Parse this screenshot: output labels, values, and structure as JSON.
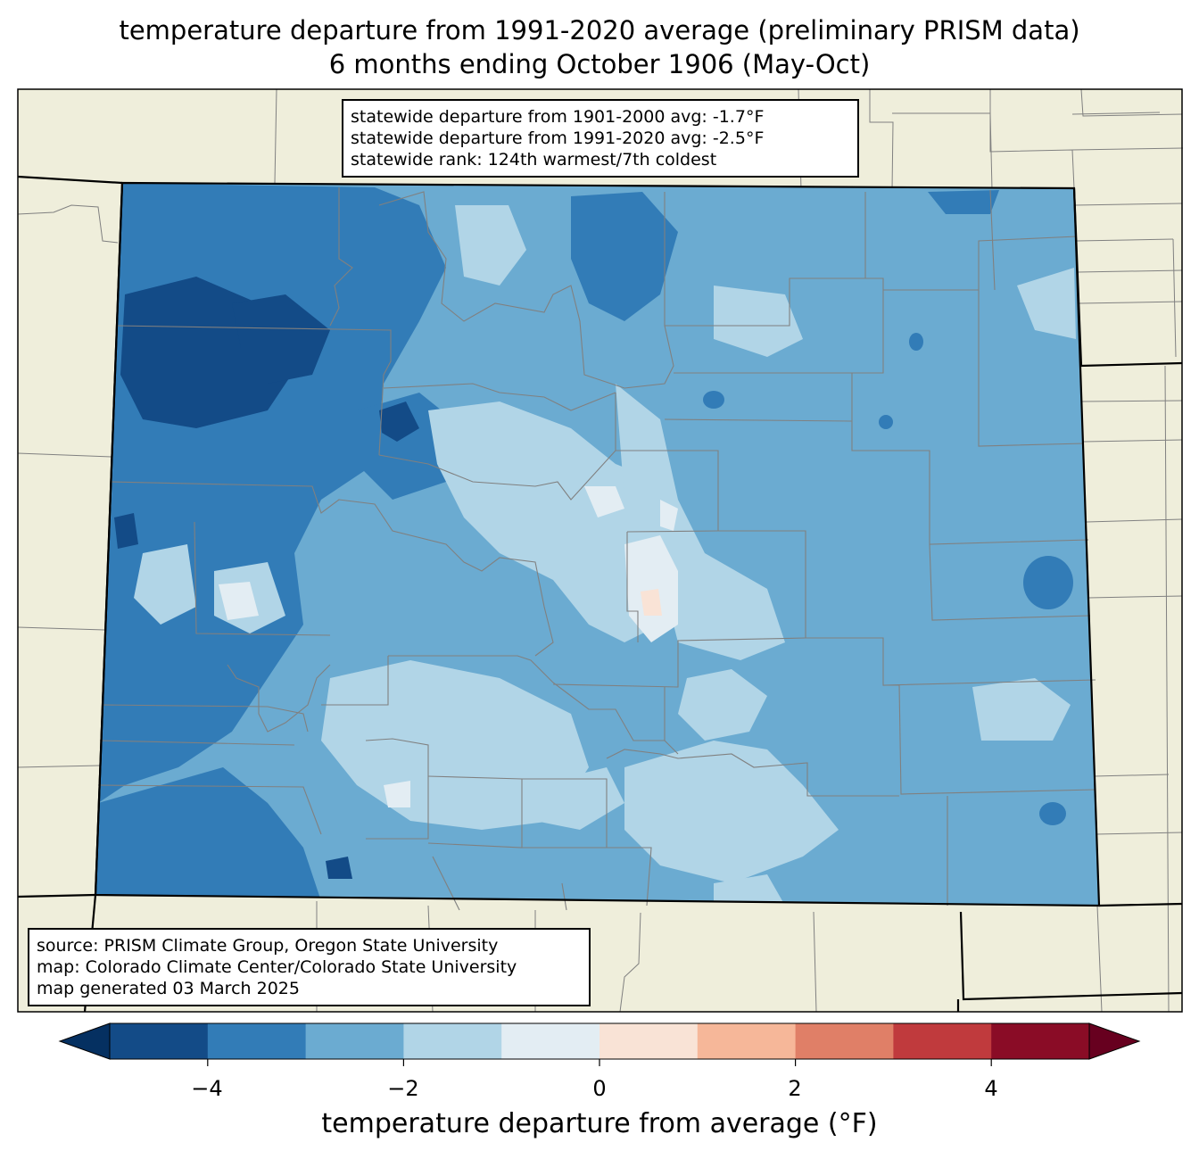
{
  "title": {
    "line1": "temperature departure from 1991-2020 average (preliminary PRISM data)",
    "line2": "6 months ending October 1906 (May-Oct)"
  },
  "stats": {
    "line1": "statewide departure from 1901-2000 avg: -1.7°F",
    "line2": "statewide departure from 1991-2020 avg: -2.5°F",
    "line3": "statewide rank: 124th warmest/7th coldest"
  },
  "source": {
    "line1": "source: PRISM Climate Group, Oregon State University",
    "line2": "map: Colorado Climate Center/Colorado State University",
    "line3": "map generated 03 March 2025"
  },
  "colorbar": {
    "label": "temperature departure from average (°F)",
    "ticks": [
      "−4",
      "−2",
      "0",
      "2",
      "4"
    ],
    "bins": [
      {
        "from": -5,
        "to": -4,
        "color": "#134b87"
      },
      {
        "from": -4,
        "to": -3,
        "color": "#327cb7"
      },
      {
        "from": -3,
        "to": -2,
        "color": "#6babd1"
      },
      {
        "from": -2,
        "to": -1,
        "color": "#b1d5e7"
      },
      {
        "from": -1,
        "to": 0,
        "color": "#e3edf3"
      },
      {
        "from": 0,
        "to": 1,
        "color": "#f9e3d6"
      },
      {
        "from": 1,
        "to": 2,
        "color": "#f6b799"
      },
      {
        "from": 2,
        "to": 3,
        "color": "#e07f67"
      },
      {
        "from": 3,
        "to": 4,
        "color": "#c03a3d"
      },
      {
        "from": 4,
        "to": 5,
        "color": "#8a0c26"
      }
    ],
    "under_color": "#053061",
    "over_color": "#67001f"
  },
  "map_colors": {
    "land": "#efeedb",
    "county_lines": "#808080",
    "state_lines": "#000000"
  }
}
